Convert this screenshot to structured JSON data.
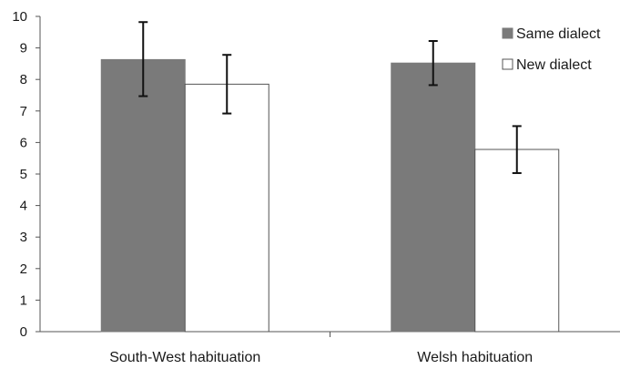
{
  "chart_data": {
    "type": "bar",
    "categories": [
      "South-West habituation",
      "Welsh habituation"
    ],
    "series": [
      {
        "name": "Same dialect",
        "values": [
          8.63,
          8.52
        ],
        "error_low": [
          7.47,
          7.82
        ],
        "error_high": [
          9.82,
          9.22
        ],
        "fill": "#7a7a7a",
        "stroke": "#7a7a7a"
      },
      {
        "name": "New dialect",
        "values": [
          7.85,
          5.78
        ],
        "error_low": [
          6.92,
          5.03
        ],
        "error_high": [
          8.78,
          6.52
        ],
        "fill": "#ffffff",
        "stroke": "#555555"
      }
    ],
    "title": "",
    "xlabel": "",
    "ylabel": "",
    "ylim": [
      0,
      10
    ],
    "yticks": [
      "0",
      "1",
      "2",
      "3",
      "4",
      "5",
      "6",
      "7",
      "8",
      "9",
      "10"
    ],
    "grid": false,
    "legend": {
      "position": "top-right",
      "entries": [
        "Same dialect",
        "New dialect"
      ]
    }
  }
}
